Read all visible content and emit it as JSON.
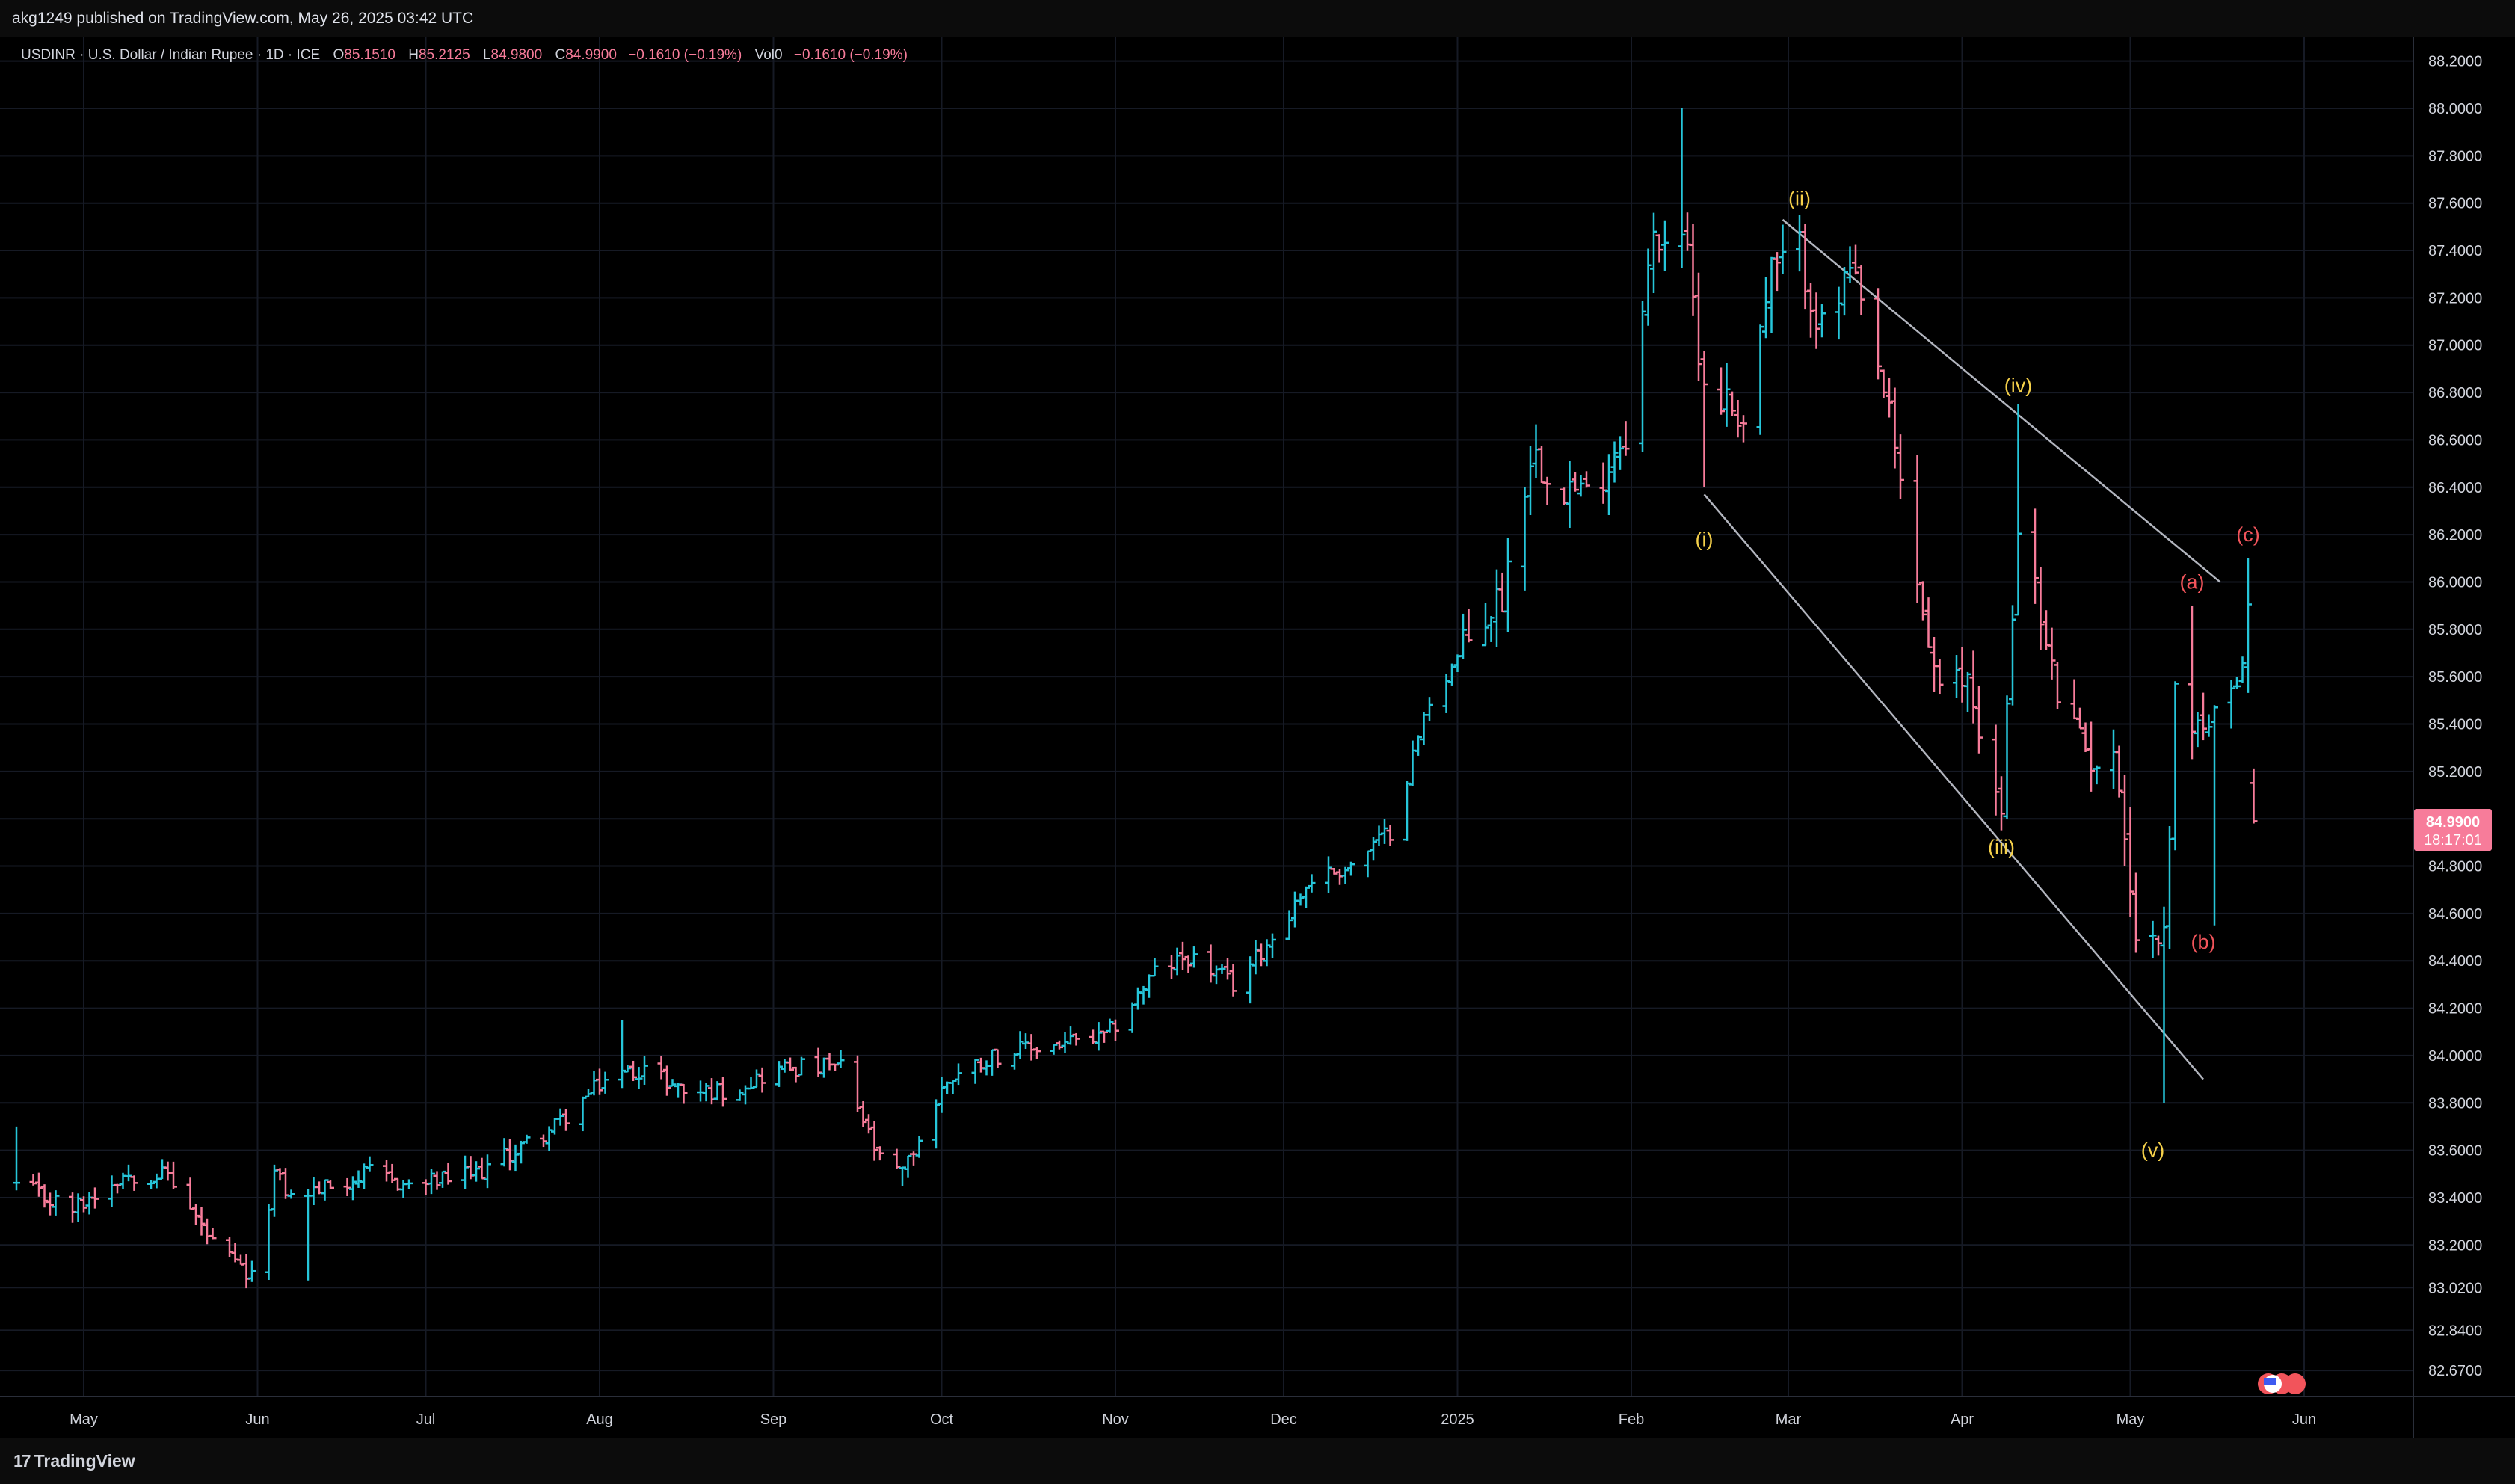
{
  "header": {
    "published_text": "akg1249 published on TradingView.com, May 26, 2025 03:42 UTC"
  },
  "legend": {
    "symbol": "USDINR · U.S. Dollar / Indian Rupee · 1D · ICE",
    "open_label": "O",
    "open": "85.1510",
    "high_label": "H",
    "high": "85.2125",
    "low_label": "L",
    "low": "84.9800",
    "close_label": "C",
    "close": "84.9900",
    "change": "−0.1610 (−0.19%)",
    "vol_label": "Vol",
    "vol": "0",
    "vol_change": "−0.1610 (−0.19%)"
  },
  "price_tag": {
    "price": "84.9900",
    "countdown": "18:17:01"
  },
  "footer": {
    "brand": "TradingView",
    "brand_mark": "17"
  },
  "colors": {
    "up": "#26c6da",
    "down": "#f77c9a",
    "tag": "#f77c9a",
    "wave_main": "#f6d14a",
    "wave_corr": "#f2545b",
    "channel": "#b2b5be"
  },
  "chart_data": {
    "type": "ohlc",
    "symbol": "USDINR",
    "ylim": [
      82.56,
      88.3
    ],
    "y_ticks": [
      82.67,
      82.84,
      83.02,
      83.2,
      83.4,
      83.6,
      83.8,
      84.0,
      84.2,
      84.4,
      84.6,
      84.8,
      85.0,
      85.2,
      85.4,
      85.6,
      85.8,
      86.0,
      86.2,
      86.4,
      86.6,
      86.8,
      87.0,
      87.2,
      87.4,
      87.6,
      87.8,
      88.0,
      88.2
    ],
    "y_tick_labels": [
      "82.6700",
      "82.8400",
      "83.0200",
      "83.2000",
      "83.4000",
      "83.6000",
      "83.8000",
      "84.0000",
      "84.2000",
      "84.4000",
      "84.6000",
      "84.8000",
      "85.0000",
      "85.2000",
      "85.4000",
      "85.6000",
      "85.8000",
      "86.0000",
      "86.2000",
      "86.4000",
      "86.6000",
      "86.8000",
      "87.0000",
      "87.2000",
      "87.4000",
      "87.6000",
      "87.8000",
      "88.0000",
      "88.2000"
    ],
    "x_tick_labels": [
      "May",
      "Jun",
      "Jul",
      "Aug",
      "Sep",
      "Oct",
      "Nov",
      "Dec",
      "2025",
      "Feb",
      "Mar",
      "Apr",
      "May",
      "Jun"
    ],
    "x_tick_dates": [
      "2024-05-01",
      "2024-06-01",
      "2024-07-01",
      "2024-08-01",
      "2024-09-01",
      "2024-10-01",
      "2024-11-01",
      "2024-12-01",
      "2025-01-01",
      "2025-02-01",
      "2025-03-01",
      "2025-04-01",
      "2025-05-01",
      "2025-06-01"
    ],
    "anchors": [
      [
        "2024-04-19",
        83.45
      ],
      [
        "2024-04-29",
        83.35
      ],
      [
        "2024-05-08",
        83.5
      ],
      [
        "2024-05-16",
        83.5
      ],
      [
        "2024-05-24",
        83.2
      ],
      [
        "2024-05-31",
        83.05
      ],
      [
        "2024-06-04",
        83.5
      ],
      [
        "2024-06-07",
        83.4
      ],
      [
        "2024-06-14",
        83.45
      ],
      [
        "2024-06-21",
        83.5
      ],
      [
        "2024-06-28",
        83.45
      ],
      [
        "2024-07-10",
        83.5
      ],
      [
        "2024-07-24",
        83.7
      ],
      [
        "2024-08-02",
        83.9
      ],
      [
        "2024-08-09",
        83.95
      ],
      [
        "2024-08-16",
        83.85
      ],
      [
        "2024-08-23",
        83.85
      ],
      [
        "2024-09-03",
        83.95
      ],
      [
        "2024-09-13",
        83.95
      ],
      [
        "2024-09-20",
        83.55
      ],
      [
        "2024-09-24",
        83.5
      ],
      [
        "2024-10-02",
        83.9
      ],
      [
        "2024-10-10",
        84.0
      ],
      [
        "2024-10-22",
        84.05
      ],
      [
        "2024-10-30",
        84.07
      ],
      [
        "2024-11-08",
        84.35
      ],
      [
        "2024-11-14",
        84.42
      ],
      [
        "2024-11-22",
        84.3
      ],
      [
        "2024-11-29",
        84.5
      ],
      [
        "2024-12-06",
        84.75
      ],
      [
        "2024-12-13",
        84.8
      ],
      [
        "2024-12-20",
        84.95
      ],
      [
        "2024-12-27",
        85.5
      ],
      [
        "2025-01-03",
        85.75
      ],
      [
        "2025-01-09",
        85.95
      ],
      [
        "2025-01-14",
        86.55
      ],
      [
        "2025-01-24",
        86.35
      ],
      [
        "2025-01-31",
        86.65
      ],
      [
        "2025-02-05",
        87.45
      ],
      [
        "2025-02-10",
        87.5
      ],
      [
        "2025-02-14",
        86.85
      ],
      [
        "2025-02-21",
        86.7
      ],
      [
        "2025-02-26",
        87.3
      ],
      [
        "2025-03-03",
        87.4
      ],
      [
        "2025-03-07",
        87.05
      ],
      [
        "2025-03-12",
        87.3
      ],
      [
        "2025-03-18",
        86.8
      ],
      [
        "2025-03-24",
        86.0
      ],
      [
        "2025-03-28",
        85.5
      ],
      [
        "2025-04-02",
        85.6
      ],
      [
        "2025-04-08",
        85.0
      ],
      [
        "2025-04-11",
        86.3
      ],
      [
        "2025-04-17",
        85.6
      ],
      [
        "2025-04-22",
        85.3
      ],
      [
        "2025-04-29",
        85.2
      ],
      [
        "2025-05-02",
        84.5
      ],
      [
        "2025-05-07",
        84.5
      ],
      [
        "2025-05-09",
        85.5
      ],
      [
        "2025-05-13",
        85.4
      ],
      [
        "2025-05-16",
        85.4
      ],
      [
        "2025-05-20",
        85.5
      ],
      [
        "2025-05-22",
        85.9
      ],
      [
        "2025-05-23",
        85.15
      ]
    ],
    "extremes": [
      [
        "2025-02-10",
        88.0,
        "high"
      ],
      [
        "2025-02-14",
        86.4,
        "low"
      ],
      [
        "2025-03-03",
        87.55,
        "high"
      ],
      [
        "2025-04-11",
        86.75,
        "high"
      ],
      [
        "2025-05-07",
        83.8,
        "low"
      ],
      [
        "2025-05-12",
        85.9,
        "high"
      ],
      [
        "2025-05-16",
        84.55,
        "low"
      ],
      [
        "2025-05-22",
        86.1,
        "high"
      ],
      [
        "2024-06-10",
        83.05,
        "low"
      ],
      [
        "2024-08-05",
        84.15,
        "high"
      ],
      [
        "2024-09-24",
        83.45,
        "low"
      ],
      [
        "2024-04-19",
        83.7,
        "high"
      ]
    ],
    "last_bar": {
      "date": "2025-05-23",
      "open": 85.151,
      "high": 85.2125,
      "low": 84.98,
      "close": 84.99
    },
    "waves": [
      {
        "label": "(i)",
        "date": "2025-02-14",
        "price": 86.18,
        "group": "main"
      },
      {
        "label": "(ii)",
        "date": "2025-03-03",
        "price": 87.62,
        "group": "main"
      },
      {
        "label": "(iii)",
        "date": "2025-04-08",
        "price": 84.88,
        "group": "main"
      },
      {
        "label": "(iv)",
        "date": "2025-04-11",
        "price": 86.83,
        "group": "main"
      },
      {
        "label": "(v)",
        "date": "2025-05-05",
        "price": 83.6,
        "group": "main"
      },
      {
        "label": "(a)",
        "date": "2025-05-12",
        "price": 86.0,
        "group": "corr"
      },
      {
        "label": "(b)",
        "date": "2025-05-14",
        "price": 84.48,
        "group": "corr"
      },
      {
        "label": "(c)",
        "date": "2025-05-22",
        "price": 86.2,
        "group": "corr"
      }
    ],
    "channel_lines": [
      {
        "from": [
          "2025-02-14",
          86.37
        ],
        "to": [
          "2025-05-14",
          83.9
        ]
      },
      {
        "from": [
          "2025-02-28",
          87.53
        ],
        "to": [
          "2025-05-17",
          86.0
        ]
      }
    ]
  }
}
